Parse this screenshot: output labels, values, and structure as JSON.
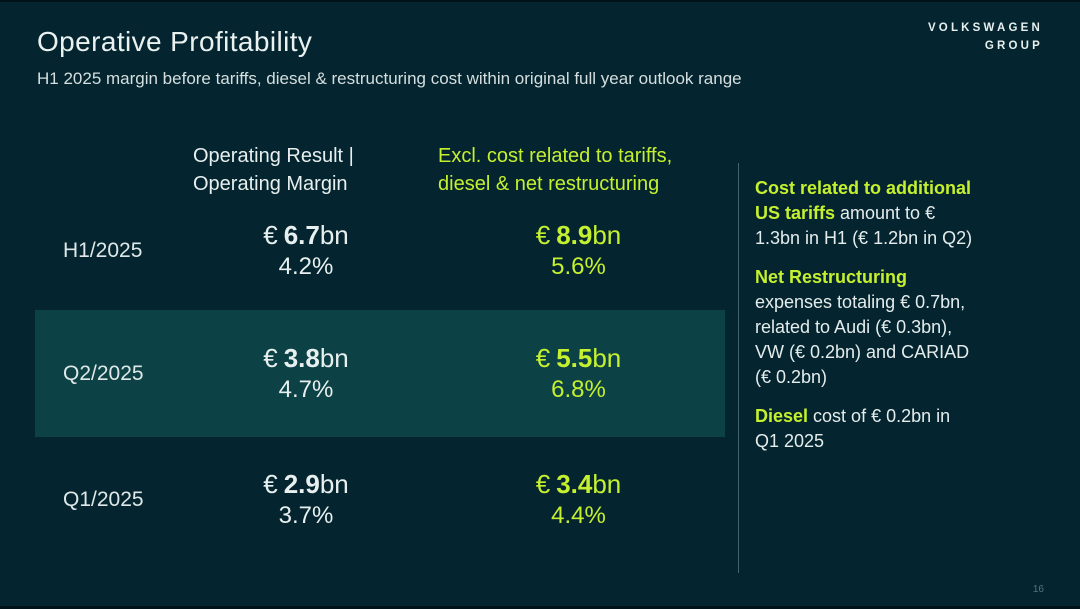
{
  "slide": {
    "title": "Operative Profitability",
    "subtitle": "H1 2025 margin before tariffs, diesel & restructuring cost within original full year outlook range",
    "page_number": "16"
  },
  "logo": {
    "line1": "VOLKSWAGEN",
    "line2": "GROUP"
  },
  "colors": {
    "background": "#04252f",
    "row_highlight": "#0c4245",
    "accent_green": "#c5f02f",
    "text_primary": "#e8efef"
  },
  "table": {
    "header": {
      "col1": {
        "line1": "Operating Result |",
        "line2": "Operating Margin"
      },
      "col2": {
        "line1": "Excl. cost related to tariffs,",
        "line2": "diesel & net restructuring"
      }
    },
    "rows": [
      {
        "period": "H1/2025",
        "highlighted": false,
        "operating": {
          "currency": "€",
          "amount": "6.7",
          "unit": "bn",
          "margin": "4.2%"
        },
        "excl": {
          "currency": "€",
          "amount": "8.9",
          "unit": "bn",
          "margin": "5.6%"
        }
      },
      {
        "period": "Q2/2025",
        "highlighted": true,
        "operating": {
          "currency": "€",
          "amount": "3.8",
          "unit": "bn",
          "margin": "4.7%"
        },
        "excl": {
          "currency": "€",
          "amount": "5.5",
          "unit": "bn",
          "margin": "6.8%"
        }
      },
      {
        "period": "Q1/2025",
        "highlighted": false,
        "operating": {
          "currency": "€",
          "amount": "2.9",
          "unit": "bn",
          "margin": "3.7%"
        },
        "excl": {
          "currency": "€",
          "amount": "3.4",
          "unit": "bn",
          "margin": "4.4%"
        }
      }
    ]
  },
  "sidebar": {
    "paragraphs": [
      {
        "lines": [
          {
            "h": "Cost related to additional",
            "n": ""
          },
          {
            "h": "US tariffs",
            "n": " amount to €"
          },
          {
            "h": "",
            "n": "1.3bn in H1 (€ 1.2bn in Q2)"
          }
        ]
      },
      {
        "lines": [
          {
            "h": "Net Restructuring",
            "n": ""
          },
          {
            "h": "",
            "n": "expenses totaling € 0.7bn,"
          },
          {
            "h": "",
            "n": "related to Audi (€ 0.3bn),"
          },
          {
            "h": "",
            "n": "VW (€ 0.2bn) and CARIAD"
          },
          {
            "h": "",
            "n": "(€ 0.2bn)"
          }
        ]
      },
      {
        "lines": [
          {
            "h": "Diesel",
            "n": " cost of € 0.2bn in"
          },
          {
            "h": "",
            "n": "Q1 2025"
          }
        ]
      }
    ]
  }
}
